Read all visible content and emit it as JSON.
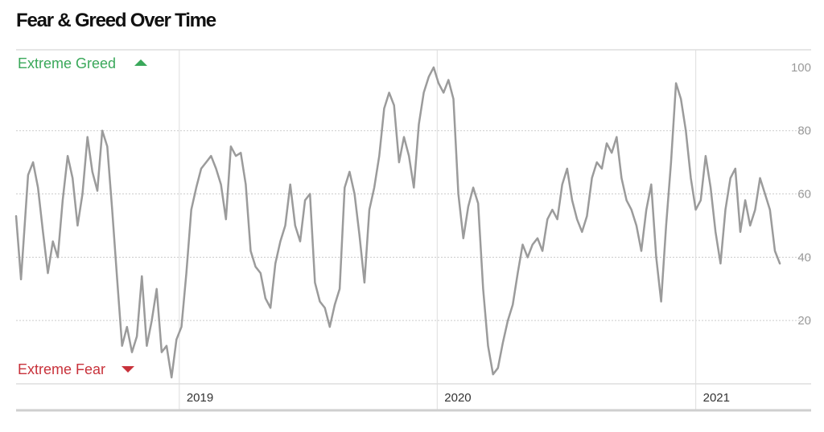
{
  "chart_data": {
    "type": "line",
    "title": "Fear & Greed Over Time",
    "annotations": {
      "top": "Extreme Greed",
      "bottom": "Extreme Fear"
    },
    "y_ticks": [
      20,
      40,
      60,
      80,
      100
    ],
    "x_ticks": [
      {
        "label": "2019",
        "x": "2019-01-01"
      },
      {
        "label": "2020",
        "x": "2020-01-01"
      },
      {
        "label": "2021",
        "x": "2021-01-01"
      }
    ],
    "xlim": [
      "2018-05-15",
      "2021-05-01"
    ],
    "ylim": [
      0,
      102
    ],
    "grid": true,
    "colors": {
      "line": "#9b9b9b",
      "greed": "#3aa85a",
      "fear": "#c8323b",
      "grid": "#cccccc"
    },
    "series": [
      {
        "values": [
          [
            "2018-05-15",
            53
          ],
          [
            "2018-05-22",
            33
          ],
          [
            "2018-06-01",
            66
          ],
          [
            "2018-06-08",
            70
          ],
          [
            "2018-06-15",
            62
          ],
          [
            "2018-06-22",
            48
          ],
          [
            "2018-06-29",
            35
          ],
          [
            "2018-07-06",
            45
          ],
          [
            "2018-07-13",
            40
          ],
          [
            "2018-07-20",
            58
          ],
          [
            "2018-07-27",
            72
          ],
          [
            "2018-08-03",
            65
          ],
          [
            "2018-08-10",
            50
          ],
          [
            "2018-08-17",
            60
          ],
          [
            "2018-08-24",
            78
          ],
          [
            "2018-08-31",
            67
          ],
          [
            "2018-09-07",
            61
          ],
          [
            "2018-09-14",
            80
          ],
          [
            "2018-09-21",
            75
          ],
          [
            "2018-09-28",
            55
          ],
          [
            "2018-10-05",
            33
          ],
          [
            "2018-10-12",
            12
          ],
          [
            "2018-10-19",
            18
          ],
          [
            "2018-10-26",
            10
          ],
          [
            "2018-11-02",
            15
          ],
          [
            "2018-11-09",
            34
          ],
          [
            "2018-11-16",
            12
          ],
          [
            "2018-11-23",
            20
          ],
          [
            "2018-11-30",
            30
          ],
          [
            "2018-12-07",
            10
          ],
          [
            "2018-12-14",
            12
          ],
          [
            "2018-12-21",
            2
          ],
          [
            "2018-12-28",
            14
          ],
          [
            "2019-01-04",
            18
          ],
          [
            "2019-01-11",
            35
          ],
          [
            "2019-01-18",
            55
          ],
          [
            "2019-01-25",
            62
          ],
          [
            "2019-02-01",
            68
          ],
          [
            "2019-02-08",
            70
          ],
          [
            "2019-02-15",
            72
          ],
          [
            "2019-02-22",
            68
          ],
          [
            "2019-03-01",
            63
          ],
          [
            "2019-03-08",
            52
          ],
          [
            "2019-03-15",
            75
          ],
          [
            "2019-03-22",
            72
          ],
          [
            "2019-03-29",
            73
          ],
          [
            "2019-04-05",
            63
          ],
          [
            "2019-04-12",
            42
          ],
          [
            "2019-04-19",
            37
          ],
          [
            "2019-04-26",
            35
          ],
          [
            "2019-05-03",
            27
          ],
          [
            "2019-05-10",
            24
          ],
          [
            "2019-05-17",
            38
          ],
          [
            "2019-05-24",
            45
          ],
          [
            "2019-05-31",
            50
          ],
          [
            "2019-06-07",
            63
          ],
          [
            "2019-06-14",
            50
          ],
          [
            "2019-06-21",
            45
          ],
          [
            "2019-06-28",
            58
          ],
          [
            "2019-07-05",
            60
          ],
          [
            "2019-07-12",
            32
          ],
          [
            "2019-07-19",
            26
          ],
          [
            "2019-07-26",
            24
          ],
          [
            "2019-08-02",
            18
          ],
          [
            "2019-08-09",
            25
          ],
          [
            "2019-08-16",
            30
          ],
          [
            "2019-08-23",
            62
          ],
          [
            "2019-08-30",
            67
          ],
          [
            "2019-09-06",
            60
          ],
          [
            "2019-09-13",
            47
          ],
          [
            "2019-09-20",
            32
          ],
          [
            "2019-09-27",
            55
          ],
          [
            "2019-10-04",
            62
          ],
          [
            "2019-10-11",
            72
          ],
          [
            "2019-10-18",
            87
          ],
          [
            "2019-10-25",
            92
          ],
          [
            "2019-11-01",
            88
          ],
          [
            "2019-11-08",
            70
          ],
          [
            "2019-11-15",
            78
          ],
          [
            "2019-11-22",
            72
          ],
          [
            "2019-11-29",
            62
          ],
          [
            "2019-12-06",
            82
          ],
          [
            "2019-12-13",
            92
          ],
          [
            "2019-12-20",
            97
          ],
          [
            "2019-12-27",
            100
          ],
          [
            "2020-01-03",
            95
          ],
          [
            "2020-01-10",
            92
          ],
          [
            "2020-01-17",
            96
          ],
          [
            "2020-01-24",
            90
          ],
          [
            "2020-01-31",
            60
          ],
          [
            "2020-02-07",
            46
          ],
          [
            "2020-02-14",
            56
          ],
          [
            "2020-02-21",
            62
          ],
          [
            "2020-02-28",
            57
          ],
          [
            "2020-03-06",
            30
          ],
          [
            "2020-03-13",
            12
          ],
          [
            "2020-03-20",
            3
          ],
          [
            "2020-03-27",
            5
          ],
          [
            "2020-04-03",
            13
          ],
          [
            "2020-04-10",
            20
          ],
          [
            "2020-04-17",
            25
          ],
          [
            "2020-04-24",
            35
          ],
          [
            "2020-05-01",
            44
          ],
          [
            "2020-05-08",
            40
          ],
          [
            "2020-05-15",
            44
          ],
          [
            "2020-05-22",
            46
          ],
          [
            "2020-05-29",
            42
          ],
          [
            "2020-06-05",
            52
          ],
          [
            "2020-06-12",
            55
          ],
          [
            "2020-06-19",
            52
          ],
          [
            "2020-06-26",
            63
          ],
          [
            "2020-07-03",
            68
          ],
          [
            "2020-07-10",
            58
          ],
          [
            "2020-07-17",
            52
          ],
          [
            "2020-07-24",
            48
          ],
          [
            "2020-07-31",
            53
          ],
          [
            "2020-08-07",
            65
          ],
          [
            "2020-08-14",
            70
          ],
          [
            "2020-08-21",
            68
          ],
          [
            "2020-08-28",
            76
          ],
          [
            "2020-09-04",
            73
          ],
          [
            "2020-09-11",
            78
          ],
          [
            "2020-09-18",
            65
          ],
          [
            "2020-09-25",
            58
          ],
          [
            "2020-10-02",
            55
          ],
          [
            "2020-10-09",
            50
          ],
          [
            "2020-10-16",
            42
          ],
          [
            "2020-10-23",
            55
          ],
          [
            "2020-10-30",
            63
          ],
          [
            "2020-11-06",
            40
          ],
          [
            "2020-11-13",
            26
          ],
          [
            "2020-11-20",
            50
          ],
          [
            "2020-11-27",
            70
          ],
          [
            "2020-12-04",
            95
          ],
          [
            "2020-12-11",
            90
          ],
          [
            "2020-12-18",
            80
          ],
          [
            "2020-12-25",
            65
          ],
          [
            "2021-01-01",
            55
          ],
          [
            "2021-01-08",
            58
          ],
          [
            "2021-01-15",
            72
          ],
          [
            "2021-01-22",
            62
          ],
          [
            "2021-01-29",
            48
          ],
          [
            "2021-02-05",
            38
          ],
          [
            "2021-02-12",
            55
          ],
          [
            "2021-02-19",
            65
          ],
          [
            "2021-02-26",
            68
          ],
          [
            "2021-03-05",
            48
          ],
          [
            "2021-03-12",
            58
          ],
          [
            "2021-03-19",
            50
          ],
          [
            "2021-03-26",
            55
          ],
          [
            "2021-04-02",
            65
          ],
          [
            "2021-04-09",
            60
          ],
          [
            "2021-04-16",
            55
          ],
          [
            "2021-04-23",
            42
          ],
          [
            "2021-04-30",
            38
          ]
        ]
      }
    ]
  }
}
